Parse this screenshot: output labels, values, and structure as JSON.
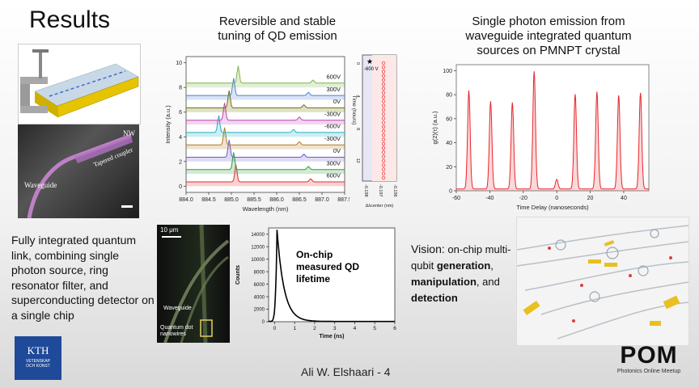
{
  "slide": {
    "title": "Results",
    "caption_tuning": "Reversible and stable tuning of QD emission",
    "caption_single_photon": "Single photon emission from waveguide integrated quantum sources on PMNPT crystal",
    "left_text": "Fully integrated quantum link, combining single photon source, ring resonator filter, and superconducting detector on a single chip",
    "vision": {
      "label": "Vision:",
      "text1": "on-chip multi-qubit",
      "generation": "generation",
      "comma": ",",
      "manipulation": "manipulation",
      "and": ", and",
      "detection": "detection"
    },
    "footer": "Ali W. Elshaari  - 4",
    "logo_kth": "KTH",
    "logo_kth_sub1": "VETENSKAP",
    "logo_kth_sub2": "OCH KONST",
    "logo_pom": "POM",
    "logo_pom_sub": "Photonics Online Meetup"
  },
  "sem_image": {
    "label_nw": "NW",
    "label_coupler": "Tapered coupler",
    "label_waveguide": "Waveguide"
  },
  "micro_image": {
    "scale": "10 μm",
    "label_waveguide": "Waveguide",
    "label_qd": "Quantum dot nanowires"
  },
  "colors": {
    "accent_red": "#e8262a",
    "lifetime_line": "#000000"
  },
  "chart_data": [
    {
      "type": "line",
      "name": "spectra",
      "xlabel": "Wavelength (nm)",
      "ylabel": "Intensity (a.u.)",
      "xlim": [
        884.0,
        887.5
      ],
      "ylim": [
        -0.5,
        10.5
      ],
      "xticks": [
        "884.0",
        "884.5",
        "885.0",
        "885.5",
        "886.0",
        "886.5",
        "887.0",
        "887.5"
      ],
      "yticks": [
        "0",
        "2",
        "4",
        "6",
        "8",
        "10"
      ],
      "series": [
        {
          "name": "600V",
          "offset": 0,
          "peak": 885.1,
          "color": "#e0302f"
        },
        {
          "name": "300V",
          "offset": 1,
          "peak": 885.05,
          "color": "#2e9c3c"
        },
        {
          "name": "0V",
          "offset": 2,
          "peak": 884.95,
          "color": "#6a5acd"
        },
        {
          "name": "-300V",
          "offset": 3,
          "peak": 884.85,
          "color": "#b07a20"
        },
        {
          "name": "-600V",
          "offset": 4,
          "peak": 884.72,
          "color": "#20b0c0"
        },
        {
          "name": "-300V",
          "offset": 5,
          "peak": 884.85,
          "color": "#c040b0"
        },
        {
          "name": "0V",
          "offset": 6,
          "peak": 884.95,
          "color": "#707000"
        },
        {
          "name": "300V",
          "offset": 7,
          "peak": 885.05,
          "color": "#5080d0"
        },
        {
          "name": "600V",
          "offset": 8,
          "peak": 885.15,
          "color": "#7ab648"
        }
      ]
    },
    {
      "type": "scatter",
      "name": "stability",
      "xlabel": "Δλcenter (nm)",
      "ylabel": "Time (hours)",
      "annotation": "-600 V",
      "xticks": [
        "-0.198",
        "-0.197",
        "-0.196"
      ],
      "yticks": [
        "0",
        "4",
        "8",
        "12"
      ],
      "x_value": -0.197,
      "points": 28
    },
    {
      "type": "line",
      "name": "g2",
      "xlabel": "Time Delay (nanoseconds)",
      "ylabel": "g(2)(τ) (a.u.)",
      "xlim": [
        -60,
        55
      ],
      "ylim": [
        0,
        105
      ],
      "xticks": [
        "-60",
        "-40",
        "-20",
        "0",
        "20",
        "40"
      ],
      "yticks": [
        "0",
        "20",
        "40",
        "60",
        "80",
        "100"
      ],
      "peaks": [
        {
          "x": -52.5,
          "y": 82
        },
        {
          "x": -39.5,
          "y": 73
        },
        {
          "x": -26.5,
          "y": 72
        },
        {
          "x": -13.5,
          "y": 98
        },
        {
          "x": 0,
          "y": 8
        },
        {
          "x": 11,
          "y": 79
        },
        {
          "x": 24,
          "y": 81
        },
        {
          "x": 37,
          "y": 78
        },
        {
          "x": 50,
          "y": 80
        }
      ]
    },
    {
      "type": "line",
      "name": "lifetime",
      "title": "On-chip measured QD lifetime",
      "xlabel": "Time (ns)",
      "ylabel": "Counts",
      "xlim": [
        -0.3,
        6
      ],
      "ylim": [
        0,
        15000
      ],
      "xticks": [
        "0",
        "1",
        "2",
        "3",
        "4",
        "5",
        "6"
      ],
      "yticks": [
        "0",
        "2000",
        "4000",
        "6000",
        "8000",
        "10000",
        "12000",
        "14000"
      ],
      "peak_time": 0.12,
      "peak_counts": 14700,
      "decay_ns": 0.35
    }
  ]
}
